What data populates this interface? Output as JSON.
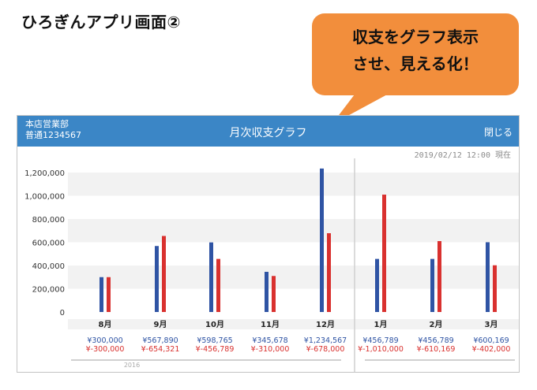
{
  "slide": {
    "title": "ひろぎんアプリ画面②",
    "callout_lines": [
      "収支をグラフ表示",
      "させ、見える化！"
    ]
  },
  "app": {
    "account_branch": "本店営業部",
    "account_number": "普通1234567",
    "screen_title": "月次収支グラフ",
    "close_label": "閉じる",
    "timestamp": "2019/02/12 12:00 現在",
    "colors": {
      "header": "#3b86c6",
      "income": "#2f54a4",
      "expense": "#d9312f",
      "accent_orange": "#f28e3c"
    }
  },
  "chart_data": {
    "type": "bar",
    "categories": [
      "8月",
      "9月",
      "10月",
      "11月",
      "12月",
      "1月",
      "2月",
      "3月"
    ],
    "series": [
      {
        "values": [
          300000,
          567890,
          598765,
          345678,
          1234567,
          456789,
          456789,
          600169
        ]
      },
      {
        "values": [
          300000,
          654321,
          456789,
          310000,
          678000,
          1010000,
          610169,
          402000
        ]
      }
    ],
    "income_labels": [
      "¥300,000",
      "¥567,890",
      "¥598,765",
      "¥345,678",
      "¥1,234,567",
      "¥456,789",
      "¥456,789",
      "¥600,169"
    ],
    "expense_labels": [
      "¥-300,000",
      "¥-654,321",
      "¥-456,789",
      "¥-310,000",
      "¥-678,000",
      "¥-1,010,000",
      "¥-610,169",
      "¥-402,000"
    ],
    "yticks": [
      "0",
      "200,000",
      "400,000",
      "600,000",
      "800,000",
      "1,000,000",
      "1,200,000"
    ],
    "ylim": [
      0,
      1300000
    ],
    "year_label": "2016",
    "grid": true,
    "legend": "none"
  }
}
